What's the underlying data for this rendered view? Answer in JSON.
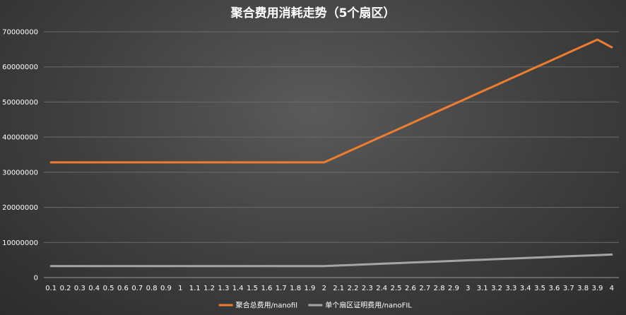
{
  "chart_data": {
    "type": "line",
    "title": "聚合费用消耗走势（5个扇区）",
    "xlabel": "",
    "ylabel": "",
    "ylim": [
      0,
      70000000
    ],
    "yticks": [
      0,
      10000000,
      20000000,
      30000000,
      40000000,
      50000000,
      60000000,
      70000000
    ],
    "grid": true,
    "legend_position": "bottom",
    "categories": [
      "0.1",
      "0.2",
      "0.3",
      "0.4",
      "0.5",
      "0.6",
      "0.7",
      "0.8",
      "0.9",
      "1",
      "1.1",
      "1.2",
      "1.3",
      "1.4",
      "1.5",
      "1.6",
      "1.7",
      "1.8",
      "1.9",
      "2",
      "2.1",
      "2.2",
      "2.3",
      "2.4",
      "2.5",
      "2.6",
      "2.7",
      "2.8",
      "2.9",
      "3",
      "3.1",
      "3.2",
      "3.3",
      "3.4",
      "3.5",
      "3.6",
      "3.7",
      "3.8",
      "3.9",
      "4"
    ],
    "series": [
      {
        "name": "聚合总费用/nanofil",
        "color": "#ed7d31",
        "values": [
          32800000,
          32800000,
          32800000,
          32800000,
          32800000,
          32800000,
          32800000,
          32800000,
          32800000,
          32800000,
          32800000,
          32800000,
          32800000,
          32800000,
          32800000,
          32800000,
          32800000,
          32800000,
          32800000,
          32800000,
          34640000,
          36480000,
          38320000,
          40160000,
          42000000,
          43840000,
          45680000,
          47520000,
          49360000,
          51200000,
          53040000,
          54880000,
          56720000,
          58560000,
          60400000,
          62240000,
          64080000,
          65920000,
          67760000,
          65600000
        ]
      },
      {
        "name": "单个扇区证明费用/nanoFIL",
        "color": "#a5a5a5",
        "values": [
          3280000,
          3280000,
          3280000,
          3280000,
          3280000,
          3280000,
          3280000,
          3280000,
          3280000,
          3280000,
          3280000,
          3280000,
          3280000,
          3280000,
          3280000,
          3280000,
          3280000,
          3280000,
          3280000,
          3280000,
          3444000,
          3608000,
          3772000,
          3936000,
          4100000,
          4264000,
          4428000,
          4592000,
          4756000,
          4920000,
          5084000,
          5248000,
          5412000,
          5576000,
          5740000,
          5904000,
          6068000,
          6232000,
          6396000,
          6560000
        ]
      }
    ]
  }
}
